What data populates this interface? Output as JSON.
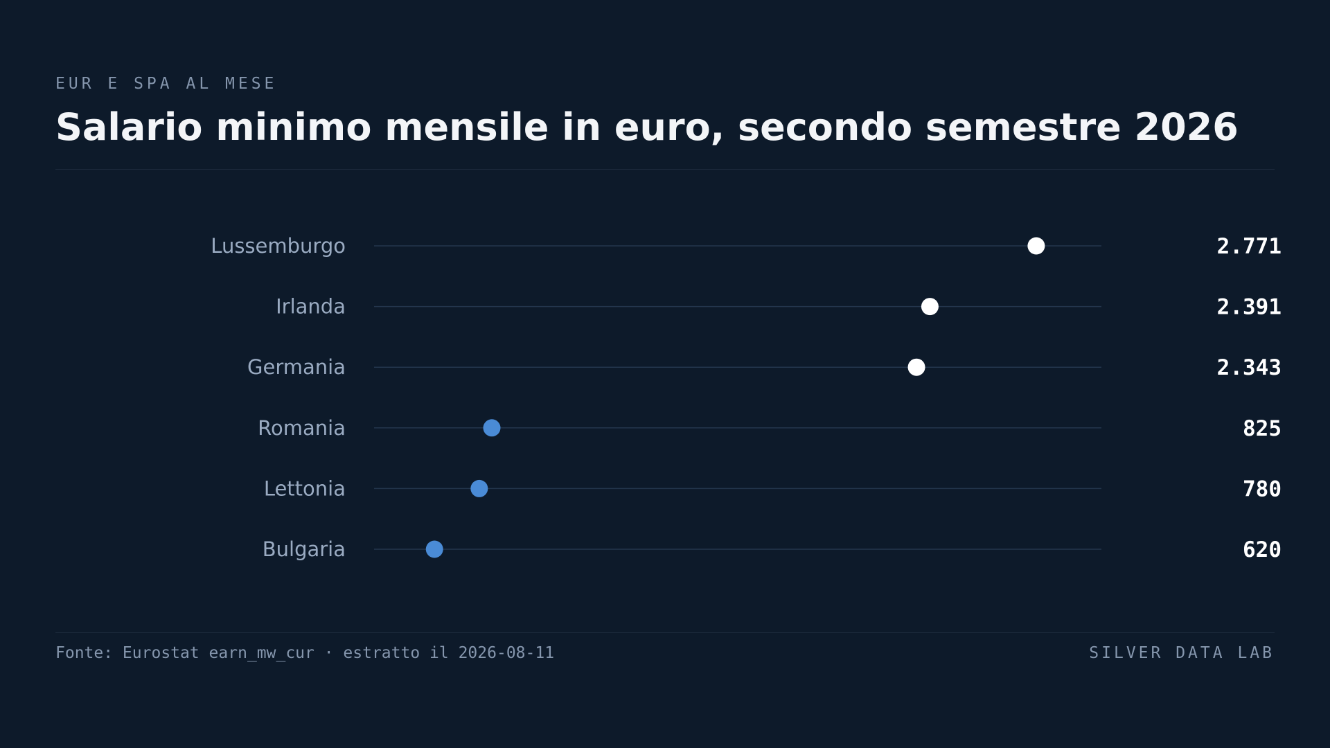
{
  "header": {
    "eyebrow": "EUR E SPA AL MESE",
    "title": "Salario minimo mensile in euro, secondo semestre 2026"
  },
  "footer": {
    "source": "Fonte: Eurostat earn_mw_cur · estratto il 2026-08-11",
    "brand": "SILVER DATA LAB"
  },
  "colors": {
    "background": "#0d1a2a",
    "high_dot": "#ffffff",
    "low_dot": "#4a8bd6",
    "track": "#24364d",
    "label": "#9aabc2",
    "value": "#ffffff"
  },
  "chart_data": {
    "type": "dot",
    "title": "Salario minimo mensile in euro, secondo semestre 2026",
    "categories": [
      "Lussemburgo",
      "Irlanda",
      "Germania",
      "Romania",
      "Lettonia",
      "Bulgaria"
    ],
    "values": [
      2771,
      2391,
      2343,
      825,
      780,
      620
    ],
    "value_labels": [
      "2.771",
      "2.391",
      "2.343",
      "825",
      "780",
      "620"
    ],
    "groups": [
      "high",
      "high",
      "high",
      "low",
      "low",
      "low"
    ],
    "xlim": [
      404,
      3004
    ],
    "xlabel": "",
    "ylabel": "",
    "grid": false,
    "legend": "none"
  }
}
